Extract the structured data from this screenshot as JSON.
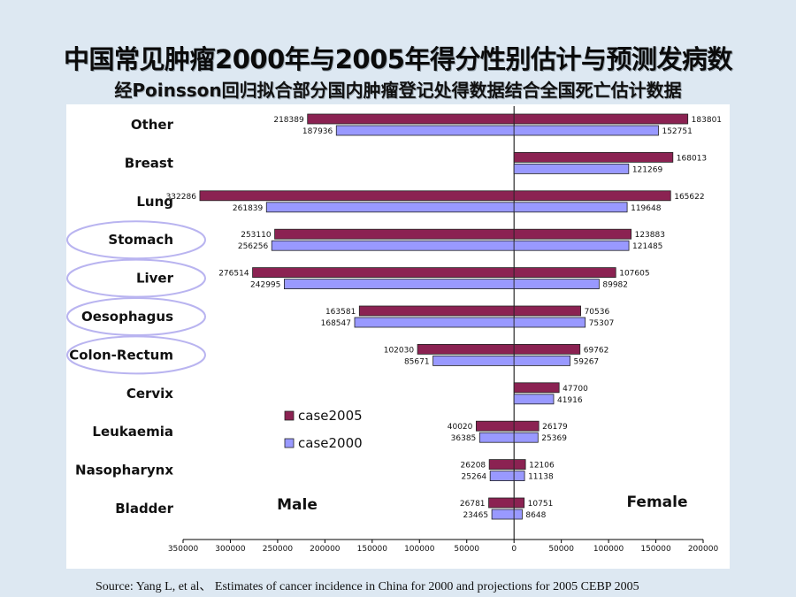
{
  "title": "中国常见肿瘤2000年与2005年得分性别估计与预测发病数",
  "subtitle": "经Poinsson回归拟合部分国内肿瘤登记处得数据结合全国死亡估计数据",
  "source": "Source: Yang L, et al、 Estimates of cancer incidence in China for 2000 and projections for 2005 CEBP 2005",
  "colors": {
    "case2005": "#8b2252",
    "case2000": "#9999ff",
    "ellipse": "#b9b4f0"
  },
  "chart_data": {
    "type": "bar",
    "orientation": "horizontal-diverging",
    "categories": [
      "Other",
      "Breast",
      "Lung",
      "Stomach",
      "Liver",
      "Oesophagus",
      "Colon-Rectum",
      "Cervix",
      "Leukaemia",
      "Nasopharynx",
      "Bladder"
    ],
    "highlighted": [
      "Stomach",
      "Liver",
      "Oesophagus",
      "Colon-Rectum"
    ],
    "side_labels": {
      "left": "Male",
      "right": "Female"
    },
    "series": [
      {
        "name": "case2005",
        "male": [
          218389,
          null,
          332286,
          253110,
          276514,
          163581,
          102030,
          null,
          40020,
          26208,
          26781
        ],
        "female": [
          183801,
          168013,
          165622,
          123883,
          107605,
          70536,
          69762,
          47700,
          26179,
          12106,
          10751
        ]
      },
      {
        "name": "case2000",
        "male": [
          187936,
          null,
          261839,
          256256,
          242995,
          168547,
          85671,
          null,
          36385,
          25264,
          23465
        ],
        "female": [
          152751,
          121269,
          119648,
          121485,
          89982,
          75307,
          59267,
          41916,
          25369,
          11138,
          8648
        ]
      }
    ],
    "xlim": [
      -350000,
      200000
    ],
    "x_ticks": [
      {
        "value": -350000,
        "label": "350000"
      },
      {
        "value": -300000,
        "label": "300000"
      },
      {
        "value": -250000,
        "label": "250000"
      },
      {
        "value": -200000,
        "label": "200000"
      },
      {
        "value": -150000,
        "label": "150000"
      },
      {
        "value": -100000,
        "label": "100000"
      },
      {
        "value": -50000,
        "label": "50000"
      },
      {
        "value": 0,
        "label": "0"
      },
      {
        "value": 50000,
        "label": "50000"
      },
      {
        "value": 100000,
        "label": "100000"
      },
      {
        "value": 150000,
        "label": "150000"
      },
      {
        "value": 200000,
        "label": "200000"
      }
    ],
    "legend": {
      "placement": "center-left",
      "entries": [
        "case2005",
        "case2000"
      ]
    },
    "grid": false
  }
}
